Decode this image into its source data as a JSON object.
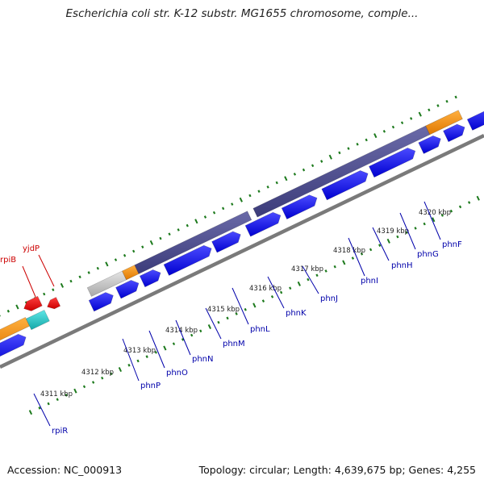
{
  "title": "Escherichia coli str. K-12 substr. MG1655 chromosome, comple...",
  "footer": {
    "accession": "Accession: NC_000913",
    "summary": "Topology: circular; Length: 4,639,675 bp; Genes: 4,255"
  },
  "colors": {
    "backbone": "#7a7a7a",
    "gene_forward": "#0000ee",
    "gene_reverse": "#ee0000",
    "rna": "#22c8c8",
    "operon": "#4a4a8c",
    "pseudo": "#c0c0c0",
    "orange": "#f08c00",
    "tick": "#1d7a1d",
    "label_forward": "#0000aa",
    "label_reverse": "#cc0000"
  },
  "scale_labels": [
    "4311 kbp",
    "4312 kbp",
    "4313 kbp",
    "4314 kbp",
    "4315 kbp",
    "4316 kbp",
    "4317 kbp",
    "4318 kbp",
    "4319 kbp",
    "4320 kbp"
  ],
  "gene_labels": [
    {
      "name": "rpiB",
      "strand": "reverse"
    },
    {
      "name": "yjdP",
      "strand": "reverse"
    },
    {
      "name": "rpiR",
      "strand": "forward"
    },
    {
      "name": "phnP",
      "strand": "forward"
    },
    {
      "name": "phnO",
      "strand": "forward"
    },
    {
      "name": "phnN",
      "strand": "forward"
    },
    {
      "name": "phnM",
      "strand": "forward"
    },
    {
      "name": "phnL",
      "strand": "forward"
    },
    {
      "name": "phnK",
      "strand": "forward"
    },
    {
      "name": "phnJ",
      "strand": "forward"
    },
    {
      "name": "phnI",
      "strand": "forward"
    },
    {
      "name": "phnH",
      "strand": "forward"
    },
    {
      "name": "phnG",
      "strand": "forward"
    },
    {
      "name": "phnF",
      "strand": "forward"
    }
  ]
}
